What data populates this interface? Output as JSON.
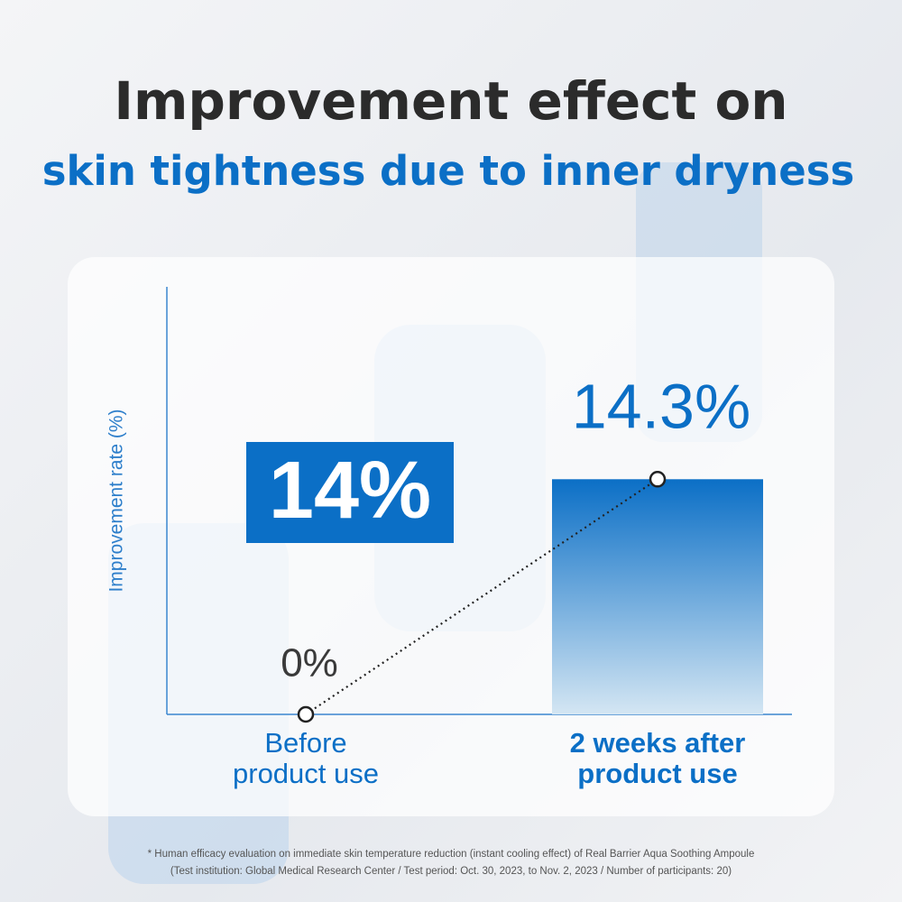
{
  "chart_data": {
    "type": "bar",
    "title": "Improvement effect on",
    "subtitle": "skin tightness due to inner dryness",
    "y_label": "Improvement rate (%)",
    "categories": [
      "Before\nproduct use",
      "2 weeks after\nproduct use"
    ],
    "values": [
      0,
      14.3
    ],
    "value_labels": [
      "0%",
      "14.3%"
    ],
    "callout": "14%",
    "ylim": [
      0,
      26
    ],
    "color": "#0b6fc6",
    "footnote": [
      "* Human efficacy evaluation on immediate skin temperature reduction (instant cooling effect) of Real Barrier Aqua Soothing Ampoule",
      "(Test institution: Global Medical Research Center / Test period: Oct. 30, 2023, to Nov. 2, 2023 / Number of participants: 20)"
    ]
  }
}
